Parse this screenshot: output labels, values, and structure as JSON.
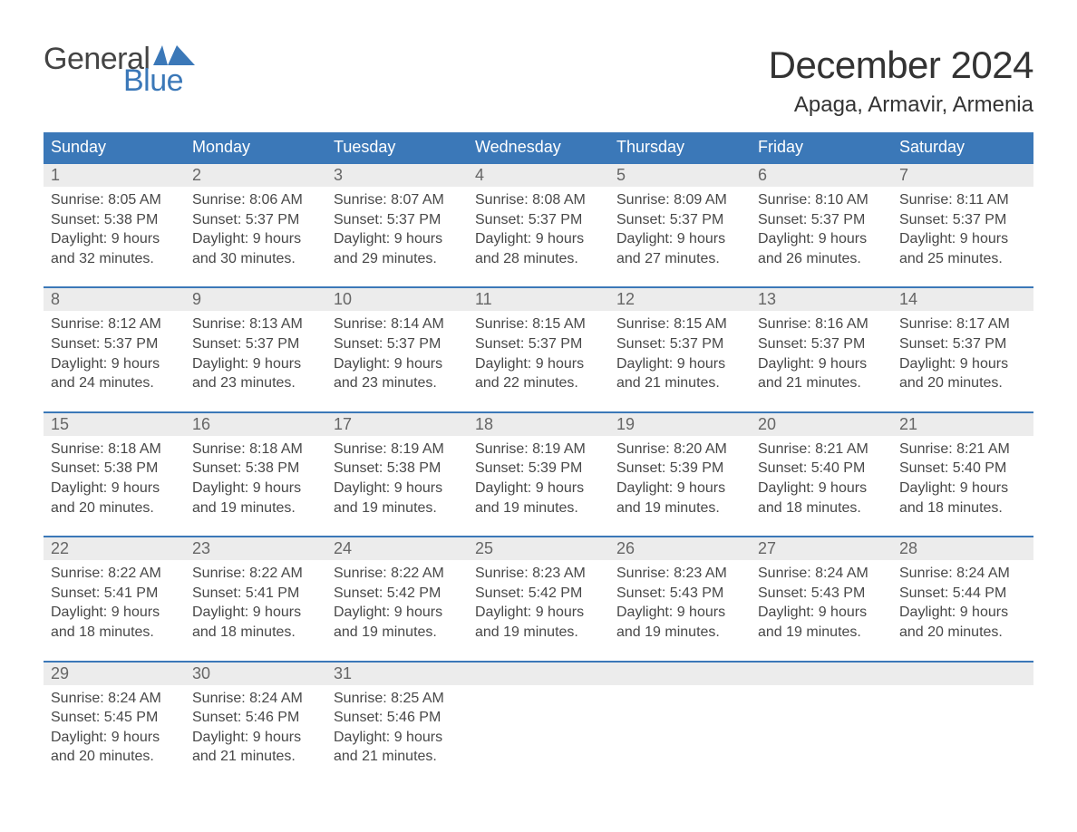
{
  "brand": {
    "word1": "General",
    "word2": "Blue",
    "flag_color": "#3b78b8"
  },
  "title": {
    "month": "December 2024",
    "location": "Apaga, Armavir, Armenia"
  },
  "colors": {
    "header_bg": "#3b78b8",
    "header_text": "#ffffff",
    "daynum_bg": "#ececec",
    "daynum_text": "#666666",
    "body_text": "#484848",
    "week_border": "#3b78b8"
  },
  "typography": {
    "month_title_size_pt": 32,
    "location_size_pt": 18,
    "dow_size_pt": 14,
    "daynum_size_pt": 14,
    "body_size_pt": 12
  },
  "days_of_week": [
    "Sunday",
    "Monday",
    "Tuesday",
    "Wednesday",
    "Thursday",
    "Friday",
    "Saturday"
  ],
  "weeks": [
    [
      {
        "n": "1",
        "sunrise": "Sunrise: 8:05 AM",
        "sunset": "Sunset: 5:38 PM",
        "day1": "Daylight: 9 hours",
        "day2": "and 32 minutes."
      },
      {
        "n": "2",
        "sunrise": "Sunrise: 8:06 AM",
        "sunset": "Sunset: 5:37 PM",
        "day1": "Daylight: 9 hours",
        "day2": "and 30 minutes."
      },
      {
        "n": "3",
        "sunrise": "Sunrise: 8:07 AM",
        "sunset": "Sunset: 5:37 PM",
        "day1": "Daylight: 9 hours",
        "day2": "and 29 minutes."
      },
      {
        "n": "4",
        "sunrise": "Sunrise: 8:08 AM",
        "sunset": "Sunset: 5:37 PM",
        "day1": "Daylight: 9 hours",
        "day2": "and 28 minutes."
      },
      {
        "n": "5",
        "sunrise": "Sunrise: 8:09 AM",
        "sunset": "Sunset: 5:37 PM",
        "day1": "Daylight: 9 hours",
        "day2": "and 27 minutes."
      },
      {
        "n": "6",
        "sunrise": "Sunrise: 8:10 AM",
        "sunset": "Sunset: 5:37 PM",
        "day1": "Daylight: 9 hours",
        "day2": "and 26 minutes."
      },
      {
        "n": "7",
        "sunrise": "Sunrise: 8:11 AM",
        "sunset": "Sunset: 5:37 PM",
        "day1": "Daylight: 9 hours",
        "day2": "and 25 minutes."
      }
    ],
    [
      {
        "n": "8",
        "sunrise": "Sunrise: 8:12 AM",
        "sunset": "Sunset: 5:37 PM",
        "day1": "Daylight: 9 hours",
        "day2": "and 24 minutes."
      },
      {
        "n": "9",
        "sunrise": "Sunrise: 8:13 AM",
        "sunset": "Sunset: 5:37 PM",
        "day1": "Daylight: 9 hours",
        "day2": "and 23 minutes."
      },
      {
        "n": "10",
        "sunrise": "Sunrise: 8:14 AM",
        "sunset": "Sunset: 5:37 PM",
        "day1": "Daylight: 9 hours",
        "day2": "and 23 minutes."
      },
      {
        "n": "11",
        "sunrise": "Sunrise: 8:15 AM",
        "sunset": "Sunset: 5:37 PM",
        "day1": "Daylight: 9 hours",
        "day2": "and 22 minutes."
      },
      {
        "n": "12",
        "sunrise": "Sunrise: 8:15 AM",
        "sunset": "Sunset: 5:37 PM",
        "day1": "Daylight: 9 hours",
        "day2": "and 21 minutes."
      },
      {
        "n": "13",
        "sunrise": "Sunrise: 8:16 AM",
        "sunset": "Sunset: 5:37 PM",
        "day1": "Daylight: 9 hours",
        "day2": "and 21 minutes."
      },
      {
        "n": "14",
        "sunrise": "Sunrise: 8:17 AM",
        "sunset": "Sunset: 5:37 PM",
        "day1": "Daylight: 9 hours",
        "day2": "and 20 minutes."
      }
    ],
    [
      {
        "n": "15",
        "sunrise": "Sunrise: 8:18 AM",
        "sunset": "Sunset: 5:38 PM",
        "day1": "Daylight: 9 hours",
        "day2": "and 20 minutes."
      },
      {
        "n": "16",
        "sunrise": "Sunrise: 8:18 AM",
        "sunset": "Sunset: 5:38 PM",
        "day1": "Daylight: 9 hours",
        "day2": "and 19 minutes."
      },
      {
        "n": "17",
        "sunrise": "Sunrise: 8:19 AM",
        "sunset": "Sunset: 5:38 PM",
        "day1": "Daylight: 9 hours",
        "day2": "and 19 minutes."
      },
      {
        "n": "18",
        "sunrise": "Sunrise: 8:19 AM",
        "sunset": "Sunset: 5:39 PM",
        "day1": "Daylight: 9 hours",
        "day2": "and 19 minutes."
      },
      {
        "n": "19",
        "sunrise": "Sunrise: 8:20 AM",
        "sunset": "Sunset: 5:39 PM",
        "day1": "Daylight: 9 hours",
        "day2": "and 19 minutes."
      },
      {
        "n": "20",
        "sunrise": "Sunrise: 8:21 AM",
        "sunset": "Sunset: 5:40 PM",
        "day1": "Daylight: 9 hours",
        "day2": "and 18 minutes."
      },
      {
        "n": "21",
        "sunrise": "Sunrise: 8:21 AM",
        "sunset": "Sunset: 5:40 PM",
        "day1": "Daylight: 9 hours",
        "day2": "and 18 minutes."
      }
    ],
    [
      {
        "n": "22",
        "sunrise": "Sunrise: 8:22 AM",
        "sunset": "Sunset: 5:41 PM",
        "day1": "Daylight: 9 hours",
        "day2": "and 18 minutes."
      },
      {
        "n": "23",
        "sunrise": "Sunrise: 8:22 AM",
        "sunset": "Sunset: 5:41 PM",
        "day1": "Daylight: 9 hours",
        "day2": "and 18 minutes."
      },
      {
        "n": "24",
        "sunrise": "Sunrise: 8:22 AM",
        "sunset": "Sunset: 5:42 PM",
        "day1": "Daylight: 9 hours",
        "day2": "and 19 minutes."
      },
      {
        "n": "25",
        "sunrise": "Sunrise: 8:23 AM",
        "sunset": "Sunset: 5:42 PM",
        "day1": "Daylight: 9 hours",
        "day2": "and 19 minutes."
      },
      {
        "n": "26",
        "sunrise": "Sunrise: 8:23 AM",
        "sunset": "Sunset: 5:43 PM",
        "day1": "Daylight: 9 hours",
        "day2": "and 19 minutes."
      },
      {
        "n": "27",
        "sunrise": "Sunrise: 8:24 AM",
        "sunset": "Sunset: 5:43 PM",
        "day1": "Daylight: 9 hours",
        "day2": "and 19 minutes."
      },
      {
        "n": "28",
        "sunrise": "Sunrise: 8:24 AM",
        "sunset": "Sunset: 5:44 PM",
        "day1": "Daylight: 9 hours",
        "day2": "and 20 minutes."
      }
    ],
    [
      {
        "n": "29",
        "sunrise": "Sunrise: 8:24 AM",
        "sunset": "Sunset: 5:45 PM",
        "day1": "Daylight: 9 hours",
        "day2": "and 20 minutes."
      },
      {
        "n": "30",
        "sunrise": "Sunrise: 8:24 AM",
        "sunset": "Sunset: 5:46 PM",
        "day1": "Daylight: 9 hours",
        "day2": "and 21 minutes."
      },
      {
        "n": "31",
        "sunrise": "Sunrise: 8:25 AM",
        "sunset": "Sunset: 5:46 PM",
        "day1": "Daylight: 9 hours",
        "day2": "and 21 minutes."
      },
      {
        "empty": true
      },
      {
        "empty": true
      },
      {
        "empty": true
      },
      {
        "empty": true
      }
    ]
  ]
}
